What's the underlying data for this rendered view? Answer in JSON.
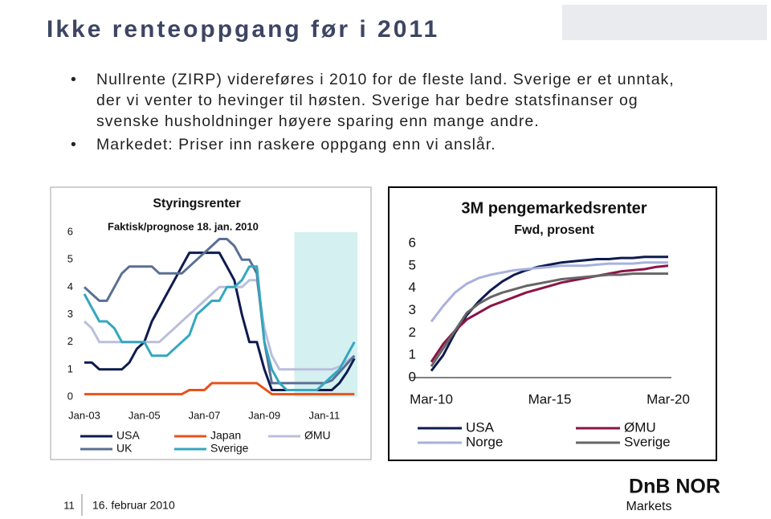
{
  "title": "Ikke renteoppgang før i 2011",
  "bullets": [
    "Nullrente (ZIRP) videreføres i 2010 for de fleste land. Sverige er et unntak, der vi venter to hevinger til høsten. Sverige har bedre statsfinanser og svenske husholdninger høyere sparing enn mange andre.",
    "Markedet: Priser inn raskere oppgang enn vi anslår."
  ],
  "chart_data": [
    {
      "type": "line",
      "title": "Styringsrenter",
      "subtitle": "Faktisk/prognose 18. jan. 2010",
      "x": [
        2003.0,
        2003.25,
        2003.5,
        2003.75,
        2004.0,
        2004.25,
        2004.5,
        2004.75,
        2005.0,
        2005.25,
        2005.5,
        2005.75,
        2006.0,
        2006.25,
        2006.5,
        2006.75,
        2007.0,
        2007.25,
        2007.5,
        2007.75,
        2008.0,
        2008.25,
        2008.5,
        2008.75,
        2009.0,
        2009.25,
        2009.5,
        2009.75,
        2010.0,
        2010.25,
        2010.5,
        2010.75,
        2011.0,
        2011.25,
        2011.5,
        2011.75,
        2012.0
      ],
      "xlim": [
        2003,
        2012.1
      ],
      "xticks": [
        {
          "value": 2003,
          "label": "Jan-03"
        },
        {
          "value": 2005,
          "label": "Jan-05"
        },
        {
          "value": 2007,
          "label": "Jan-07"
        },
        {
          "value": 2009,
          "label": "Jan-09"
        },
        {
          "value": 2011,
          "label": "Jan-11"
        }
      ],
      "ylim": [
        0,
        6
      ],
      "yticks": [
        0,
        1,
        2,
        3,
        4,
        5,
        6
      ],
      "shaded_xrange": [
        2010,
        2012.1
      ],
      "shade_color": "#d4f0f0",
      "series": [
        {
          "name": "USA",
          "color": "#0d1b4f",
          "values": [
            1.25,
            1.25,
            1.0,
            1.0,
            1.0,
            1.0,
            1.25,
            1.75,
            2.0,
            2.75,
            3.25,
            3.75,
            4.25,
            4.75,
            5.25,
            5.25,
            5.25,
            5.25,
            5.25,
            4.75,
            4.25,
            3.0,
            2.0,
            2.0,
            1.0,
            0.25,
            0.25,
            0.25,
            0.25,
            0.25,
            0.25,
            0.25,
            0.25,
            0.25,
            0.5,
            0.9,
            1.4
          ]
        },
        {
          "name": "Japan",
          "color": "#e8531c",
          "values": [
            0.1,
            0.1,
            0.1,
            0.1,
            0.1,
            0.1,
            0.1,
            0.1,
            0.1,
            0.1,
            0.1,
            0.1,
            0.1,
            0.1,
            0.25,
            0.25,
            0.25,
            0.5,
            0.5,
            0.5,
            0.5,
            0.5,
            0.5,
            0.5,
            0.3,
            0.1,
            0.1,
            0.1,
            0.1,
            0.1,
            0.1,
            0.1,
            0.1,
            0.1,
            0.1,
            0.1,
            0.1
          ]
        },
        {
          "name": "ØMU",
          "color": "#b9bfdc",
          "values": [
            2.75,
            2.5,
            2.0,
            2.0,
            2.0,
            2.0,
            2.0,
            2.0,
            2.0,
            2.0,
            2.0,
            2.25,
            2.5,
            2.75,
            3.0,
            3.25,
            3.5,
            3.75,
            4.0,
            4.0,
            4.0,
            4.0,
            4.25,
            4.25,
            2.5,
            1.5,
            1.0,
            1.0,
            1.0,
            1.0,
            1.0,
            1.0,
            1.0,
            1.0,
            1.1,
            1.3,
            1.5
          ]
        },
        {
          "name": "UK",
          "color": "#5a6f95",
          "values": [
            4.0,
            3.75,
            3.5,
            3.5,
            4.0,
            4.5,
            4.75,
            4.75,
            4.75,
            4.75,
            4.5,
            4.5,
            4.5,
            4.5,
            4.75,
            5.0,
            5.25,
            5.5,
            5.75,
            5.75,
            5.5,
            5.0,
            5.0,
            4.5,
            2.0,
            0.5,
            0.5,
            0.5,
            0.5,
            0.5,
            0.5,
            0.5,
            0.5,
            0.6,
            0.9,
            1.2,
            1.5
          ]
        },
        {
          "name": "Sverige",
          "color": "#33a7bf",
          "values": [
            3.75,
            3.25,
            2.75,
            2.75,
            2.5,
            2.0,
            2.0,
            2.0,
            2.0,
            1.5,
            1.5,
            1.5,
            1.75,
            2.0,
            2.25,
            3.0,
            3.25,
            3.5,
            3.5,
            4.0,
            4.0,
            4.25,
            4.75,
            4.75,
            2.0,
            1.0,
            0.5,
            0.25,
            0.25,
            0.25,
            0.25,
            0.25,
            0.5,
            0.75,
            1.0,
            1.5,
            2.0
          ]
        }
      ]
    },
    {
      "type": "line",
      "title": "3M pengemarkedsrenter",
      "subtitle": "Fwd, prosent",
      "x": [
        2010.0,
        2010.5,
        2011.0,
        2011.5,
        2012.0,
        2012.5,
        2013.0,
        2013.5,
        2014.0,
        2014.5,
        2015.0,
        2015.5,
        2016.0,
        2016.5,
        2017.0,
        2017.5,
        2018.0,
        2018.5,
        2019.0,
        2019.5,
        2020.0
      ],
      "xlim": [
        2010,
        2020
      ],
      "xticks": [
        {
          "value": 2010,
          "label": "Mar-10"
        },
        {
          "value": 2015,
          "label": "Mar-15"
        },
        {
          "value": 2020,
          "label": "Mar-20"
        }
      ],
      "ylim": [
        0,
        6
      ],
      "yticks": [
        0,
        1,
        2,
        3,
        4,
        5,
        6
      ],
      "series": [
        {
          "name": "USA",
          "color": "#0d1b4f",
          "values": [
            0.3,
            1.0,
            2.0,
            2.8,
            3.4,
            3.9,
            4.3,
            4.6,
            4.8,
            4.95,
            5.05,
            5.15,
            5.2,
            5.25,
            5.3,
            5.3,
            5.35,
            5.35,
            5.4,
            5.4,
            5.4
          ]
        },
        {
          "name": "ØMU",
          "color": "#8b1346",
          "values": [
            0.7,
            1.5,
            2.1,
            2.6,
            2.9,
            3.2,
            3.4,
            3.6,
            3.8,
            3.95,
            4.1,
            4.25,
            4.35,
            4.45,
            4.55,
            4.65,
            4.75,
            4.8,
            4.85,
            4.95,
            5.0
          ]
        },
        {
          "name": "Norge",
          "color": "#a9b1dc",
          "values": [
            2.5,
            3.2,
            3.8,
            4.2,
            4.45,
            4.6,
            4.7,
            4.8,
            4.85,
            4.9,
            4.95,
            5.0,
            5.0,
            5.0,
            5.05,
            5.1,
            5.1,
            5.1,
            5.15,
            5.15,
            5.15
          ]
        },
        {
          "name": "Sverige",
          "color": "#666666",
          "values": [
            0.5,
            1.3,
            2.1,
            2.9,
            3.3,
            3.6,
            3.8,
            3.95,
            4.1,
            4.2,
            4.3,
            4.4,
            4.45,
            4.5,
            4.55,
            4.6,
            4.6,
            4.65,
            4.65,
            4.65,
            4.65
          ]
        }
      ]
    }
  ],
  "footer": {
    "page": "11",
    "date": "16. februar 2010"
  },
  "logo": {
    "name": "DnB NOR",
    "sub": "Markets"
  }
}
